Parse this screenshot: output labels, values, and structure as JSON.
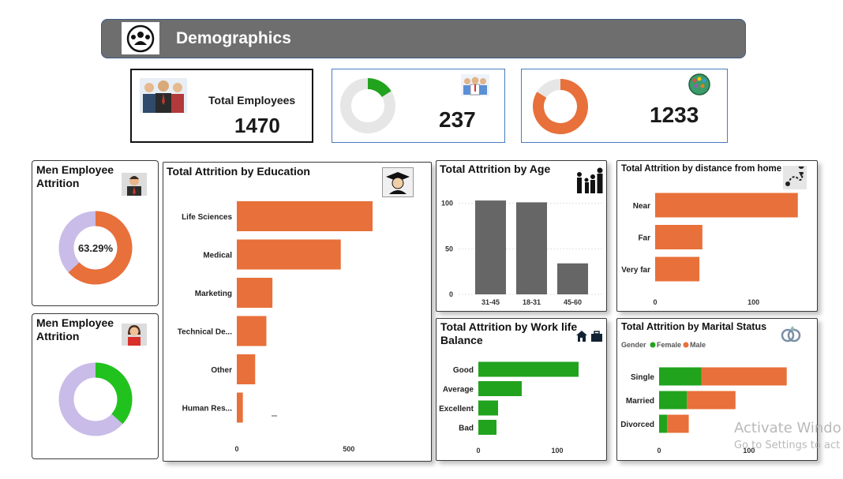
{
  "header": {
    "title": "Demographics",
    "icon": "group-icon",
    "bg": "#6E6E6E"
  },
  "kpis": [
    {
      "label": "Total Employees",
      "value": "1470",
      "icon": "employees-icon"
    },
    {
      "value": "237",
      "icon": "attrition-people-icon",
      "ring_fraction": 0.161,
      "ring_color": "#22A31E"
    },
    {
      "value": "1233",
      "icon": "globe-people-icon",
      "ring_fraction": 0.839,
      "ring_color": "#E8703A"
    }
  ],
  "men_attrition": {
    "title_line1": "Men Employee",
    "title_line2": "Attrition",
    "center_label": "63.29%",
    "fraction": 0.6329,
    "color": "#E8703A",
    "rest_color": "#C9BCE8",
    "icon": "man-avatar-icon"
  },
  "women_attrition": {
    "title_line1": "Men Employee",
    "title_line2": "Attrition",
    "fraction": 0.3671,
    "color": "#22C21E",
    "rest_color": "#C9BCE8",
    "icon": "woman-avatar-icon"
  },
  "education": {
    "title": "Total Attrition by Education",
    "icon": "graduate-icon"
  },
  "age": {
    "title": "Total Attrition by Age",
    "icon": "family-icon"
  },
  "distance": {
    "title": "Total Attrition by distance from home",
    "icon": "map-route-icon"
  },
  "worklife": {
    "title_line1": "Total Attrition by Work life",
    "title_line2": "Balance",
    "icon": "home-work-icon"
  },
  "marital": {
    "title": "Total Attrition by Marital Status",
    "legend_title": "Gender",
    "icon": "rings-icon"
  },
  "watermark": {
    "line1": "Activate Windo",
    "line2": "Go to Settings to act"
  },
  "chart_data": [
    {
      "type": "bar",
      "orientation": "horizontal",
      "title": "Total Attrition by Education",
      "categories": [
        "Life Sciences",
        "Medical",
        "Marketing",
        "Technical De...",
        "Other",
        "Human Res..."
      ],
      "values": [
        606,
        464,
        159,
        132,
        82,
        27
      ],
      "xticks": [
        0,
        500
      ],
      "xlim": [
        0,
        620
      ],
      "color": "#E8703A"
    },
    {
      "type": "bar",
      "title": "Total Attrition by Age",
      "categories": [
        "31-45",
        "18-31",
        "45-60"
      ],
      "values": [
        103,
        101,
        34
      ],
      "yticks": [
        0,
        50,
        100
      ],
      "ylim": [
        0,
        110
      ],
      "color": "#666666"
    },
    {
      "type": "bar",
      "orientation": "horizontal",
      "title": "Total Attrition by distance from home",
      "categories": [
        "Near",
        "Far",
        "Very far"
      ],
      "values": [
        145,
        48,
        45
      ],
      "xticks": [
        0,
        100
      ],
      "xlim": [
        0,
        150
      ],
      "color": "#E8703A"
    },
    {
      "type": "bar",
      "orientation": "horizontal",
      "title": "Total Attrition by Work life Balance",
      "categories": [
        "Good",
        "Average",
        "Excellent",
        "Bad"
      ],
      "values": [
        127,
        55,
        25,
        23
      ],
      "xticks": [
        0,
        100
      ],
      "xlim": [
        0,
        150
      ],
      "color": "#22A31E"
    },
    {
      "type": "bar",
      "orientation": "horizontal",
      "stacked": true,
      "title": "Total Attrition by Marital Status",
      "legend_title": "Gender",
      "categories": [
        "Single",
        "Married",
        "Divorced"
      ],
      "series": [
        {
          "name": "Female",
          "values": [
            47,
            31,
            9
          ],
          "color": "#22A31E"
        },
        {
          "name": "Male",
          "values": [
            95,
            54,
            24
          ],
          "color": "#E8703A"
        }
      ],
      "xticks": [
        0,
        100
      ],
      "xlim": [
        0,
        180
      ]
    }
  ]
}
